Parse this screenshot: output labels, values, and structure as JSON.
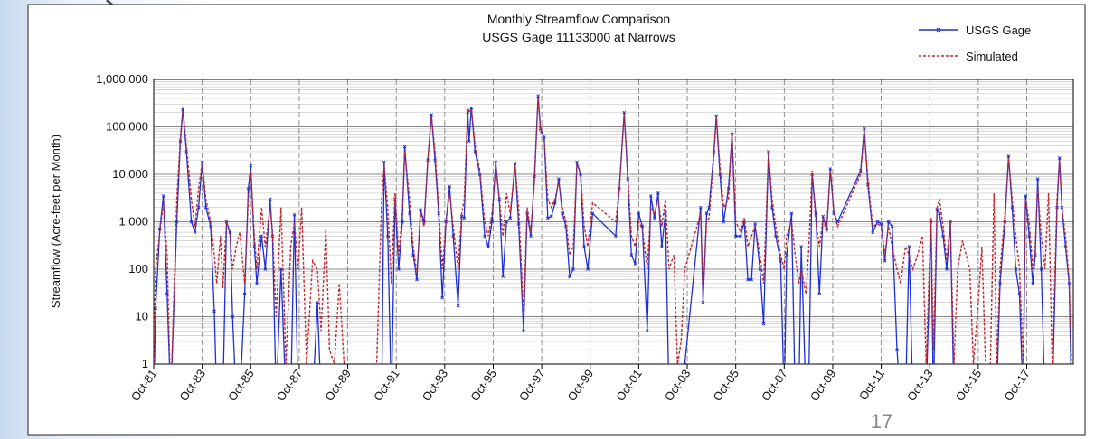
{
  "chart_data": {
    "type": "line",
    "title": "Monthly Streamflow Comparison",
    "subtitle": "USGS Gage 11133000 at Narrows",
    "y_label": "Streamflow (Acre-feet per Month)",
    "log_y": true,
    "grid": true,
    "legend": "top-right",
    "xlim": [
      1981.75,
      2019.67
    ],
    "xticks": [
      {
        "value": 1981.75,
        "label": "Oct-81"
      },
      {
        "value": 1983.75,
        "label": "Oct-83"
      },
      {
        "value": 1985.75,
        "label": "Oct-85"
      },
      {
        "value": 1987.75,
        "label": "Oct-87"
      },
      {
        "value": 1989.75,
        "label": "Oct-89"
      },
      {
        "value": 1991.75,
        "label": "Oct-91"
      },
      {
        "value": 1993.75,
        "label": "Oct-93"
      },
      {
        "value": 1995.75,
        "label": "Oct-95"
      },
      {
        "value": 1997.75,
        "label": "Oct-97"
      },
      {
        "value": 1999.75,
        "label": "Oct-99"
      },
      {
        "value": 2001.75,
        "label": "Oct-01"
      },
      {
        "value": 2003.75,
        "label": "Oct-03"
      },
      {
        "value": 2005.75,
        "label": "Oct-05"
      },
      {
        "value": 2007.75,
        "label": "Oct-07"
      },
      {
        "value": 2009.75,
        "label": "Oct-09"
      },
      {
        "value": 2011.75,
        "label": "Oct-11"
      },
      {
        "value": 2013.75,
        "label": "Oct-13"
      },
      {
        "value": 2015.75,
        "label": "Oct-15"
      },
      {
        "value": 2017.75,
        "label": "Oct-17"
      }
    ],
    "ylim": [
      1,
      1000000
    ],
    "yticks": [
      1,
      10,
      100,
      {
        "value": 1000,
        "label": "1,000"
      },
      {
        "value": 10000,
        "label": "10,000"
      },
      {
        "value": 100000,
        "label": "100,000"
      },
      {
        "value": 1000000,
        "label": "1,000,000"
      }
    ],
    "x": [
      1981.75,
      1981.83,
      1982.0,
      1982.15,
      1982.3,
      1982.45,
      1982.7,
      1982.85,
      1982.95,
      1983.1,
      1983.3,
      1983.45,
      1983.6,
      1983.75,
      1983.9,
      1984.1,
      1984.25,
      1984.35,
      1984.5,
      1984.6,
      1984.75,
      1984.9,
      1985.0,
      1985.15,
      1985.3,
      1985.5,
      1985.65,
      1985.75,
      1985.9,
      1986.0,
      1986.2,
      1986.35,
      1986.55,
      1986.65,
      1986.8,
      1987.0,
      1987.2,
      1987.4,
      1987.55,
      1987.7,
      1987.85,
      1988.05,
      1988.3,
      1988.5,
      1988.65,
      1988.85,
      1989.0,
      1989.2,
      1989.4,
      1989.6,
      1989.8,
      1990.0,
      1990.5,
      1990.9,
      1991.15,
      1991.25,
      1991.4,
      1991.55,
      1991.7,
      1991.85,
      1992.0,
      1992.1,
      1992.3,
      1992.45,
      1992.6,
      1992.75,
      1992.9,
      1993.05,
      1993.2,
      1993.35,
      1993.5,
      1993.65,
      1993.8,
      1993.95,
      1994.1,
      1994.3,
      1994.45,
      1994.55,
      1994.7,
      1994.75,
      1994.85,
      1995.0,
      1995.2,
      1995.4,
      1995.55,
      1995.7,
      1995.85,
      1996.0,
      1996.15,
      1996.3,
      1996.45,
      1996.65,
      1996.8,
      1997.0,
      1997.15,
      1997.3,
      1997.45,
      1997.6,
      1997.7,
      1997.85,
      1998.0,
      1998.15,
      1998.3,
      1998.45,
      1998.6,
      1998.75,
      1998.9,
      1999.05,
      1999.2,
      1999.35,
      1999.5,
      1999.65,
      1999.85,
      2000.8,
      2000.95,
      2001.15,
      2001.3,
      2001.45,
      2001.6,
      2001.75,
      2001.9,
      2002.1,
      2002.25,
      2002.4,
      2002.55,
      2002.7,
      2002.85,
      2003.0,
      2003.2,
      2003.35,
      2003.5,
      2003.65,
      2004.3,
      2004.4,
      2004.55,
      2004.65,
      2004.85,
      2004.95,
      2005.1,
      2005.25,
      2005.45,
      2005.6,
      2005.75,
      2005.95,
      2006.1,
      2006.25,
      2006.4,
      2006.55,
      2006.75,
      2006.9,
      2007.1,
      2007.25,
      2007.4,
      2007.6,
      2007.75,
      2007.85,
      2008.05,
      2008.2,
      2008.35,
      2008.45,
      2008.65,
      2008.75,
      2008.9,
      2009.05,
      2009.2,
      2009.35,
      2009.5,
      2009.65,
      2009.8,
      2009.95,
      2010.9,
      2011.05,
      2011.2,
      2011.4,
      2011.6,
      2011.75,
      2011.9,
      2012.05,
      2012.2,
      2012.4,
      2012.55,
      2012.75,
      2012.9,
      2013.05,
      2013.25,
      2013.45,
      2013.6,
      2013.8,
      2013.9,
      2014.05,
      2014.15,
      2014.3,
      2014.45,
      2014.6,
      2014.75,
      2014.9,
      2015.1,
      2015.25,
      2015.4,
      2015.55,
      2015.75,
      2015.9,
      2016.05,
      2016.25,
      2016.4,
      2016.5,
      2016.65,
      2016.85,
      2017.0,
      2017.15,
      2017.3,
      2017.45,
      2017.6,
      2017.7,
      2017.85,
      2018.0,
      2018.1,
      2018.2,
      2018.35,
      2018.5,
      2018.65,
      2018.8,
      2019.0,
      2019.1,
      2019.2,
      2019.35,
      2019.5,
      2019.6
    ],
    "series": [
      {
        "name": "USGS Gage",
        "color": "#1f2fd6",
        "dash": false,
        "marker": "x",
        "values": [
          0,
          15,
          700,
          3500,
          30,
          0,
          1000,
          50000,
          230000,
          30000,
          1000,
          600,
          2000,
          18000,
          2000,
          800,
          13,
          0,
          0,
          0,
          1000,
          600,
          10,
          0,
          0,
          30,
          5000,
          15000,
          300,
          50,
          500,
          100,
          3000,
          500,
          0,
          100,
          0,
          0,
          1400,
          0,
          0,
          0,
          0,
          20,
          0,
          0,
          0,
          0,
          0,
          null,
          null,
          null,
          null,
          null,
          0,
          18000,
          500,
          0,
          3000,
          100,
          1000,
          38000,
          1500,
          200,
          60,
          1800,
          1000,
          20000,
          180000,
          20000,
          1500,
          25,
          1000,
          5500,
          500,
          17,
          1300,
          1200,
          200000,
          50000,
          250000,
          30000,
          10000,
          500,
          300,
          1000,
          18000,
          3000,
          70,
          1000,
          1200,
          17000,
          900,
          5,
          1500,
          500,
          9000,
          450000,
          90000,
          60000,
          1200,
          1300,
          2500,
          8000,
          1500,
          800,
          70,
          100,
          18000,
          10000,
          300,
          100,
          1500,
          500,
          5000,
          200000,
          8000,
          200,
          130,
          1500,
          800,
          5,
          3500,
          1200,
          4000,
          300,
          1500,
          0,
          0,
          0,
          0,
          1,
          2000,
          20,
          1500,
          2000,
          30000,
          170000,
          10000,
          1000,
          5000,
          70000,
          500,
          500,
          1000,
          60,
          60,
          900,
          100,
          7,
          30000,
          2000,
          500,
          150,
          0,
          200,
          1500,
          0,
          0,
          300,
          0,
          0,
          10000,
          1500,
          30,
          1300,
          700,
          13000,
          1500,
          1000,
          12000,
          90000,
          6000,
          600,
          1000,
          900,
          150,
          1000,
          800,
          2,
          0,
          0,
          300,
          0,
          0,
          0,
          0,
          1000,
          0,
          1800,
          1500,
          500,
          100,
          1000,
          0,
          0,
          0,
          0,
          0,
          0,
          0,
          0,
          0,
          0,
          0,
          0,
          50,
          1000,
          24000,
          2000,
          100,
          30,
          0,
          3500,
          500,
          50,
          200,
          8000,
          100,
          0,
          0,
          0,
          2000,
          22000,
          2000,
          300,
          50,
          0
        ]
      },
      {
        "name": "Simulated",
        "color": "#c0262d",
        "dash": true,
        "values": [
          1,
          100,
          600,
          2500,
          200,
          0,
          3000,
          60000,
          250000,
          40000,
          3000,
          800,
          5000,
          18000,
          3000,
          1000,
          200,
          50,
          500,
          40,
          1000,
          500,
          100,
          300,
          600,
          50,
          3000,
          12000,
          500,
          100,
          2000,
          300,
          2000,
          600,
          10,
          2000,
          1,
          300,
          1000,
          100,
          2000,
          1,
          150,
          100,
          5,
          700,
          2,
          1,
          50,
          1,
          1,
          0,
          0,
          0,
          3000,
          15000,
          2000,
          50,
          4000,
          200,
          1500,
          30000,
          3000,
          300,
          80,
          1500,
          800,
          20000,
          170000,
          30000,
          2000,
          100,
          1000,
          4000,
          800,
          100,
          1500,
          3000,
          250000,
          200000,
          240000,
          40000,
          12000,
          1000,
          500,
          1500,
          14000,
          3000,
          500,
          4000,
          1500,
          15000,
          2000,
          10,
          2000,
          600,
          7000,
          420000,
          80000,
          60000,
          3000,
          2000,
          3000,
          7000,
          2000,
          1000,
          200,
          300,
          15000,
          12000,
          800,
          300,
          2500,
          1000,
          5000,
          190000,
          10000,
          500,
          300,
          1000,
          700,
          100,
          2000,
          1500,
          3000,
          800,
          3000,
          100,
          200,
          1,
          3,
          100,
          1500,
          30,
          1000,
          1200,
          25000,
          160000,
          15000,
          2000,
          3000,
          75000,
          1000,
          600,
          1200,
          300,
          500,
          800,
          200,
          50,
          30000,
          3000,
          800,
          200,
          100,
          500,
          1000,
          200,
          50,
          100,
          30,
          200,
          12000,
          1000,
          300,
          1200,
          600,
          12000,
          1500,
          800,
          10000,
          85000,
          8000,
          800,
          900,
          800,
          200,
          800,
          300,
          100,
          50,
          300,
          200,
          100,
          200,
          500,
          1,
          1200,
          2,
          2000,
          3000,
          800,
          150,
          1000,
          1,
          100,
          400,
          200,
          100,
          1,
          20,
          300,
          1,
          1,
          4000,
          1,
          100,
          1500,
          22000,
          3000,
          500,
          100,
          1,
          3000,
          1000,
          100,
          300,
          5000,
          500,
          100,
          4000,
          1,
          3000,
          20000,
          2000,
          500,
          60,
          1
        ]
      }
    ]
  },
  "slide_number": "17"
}
